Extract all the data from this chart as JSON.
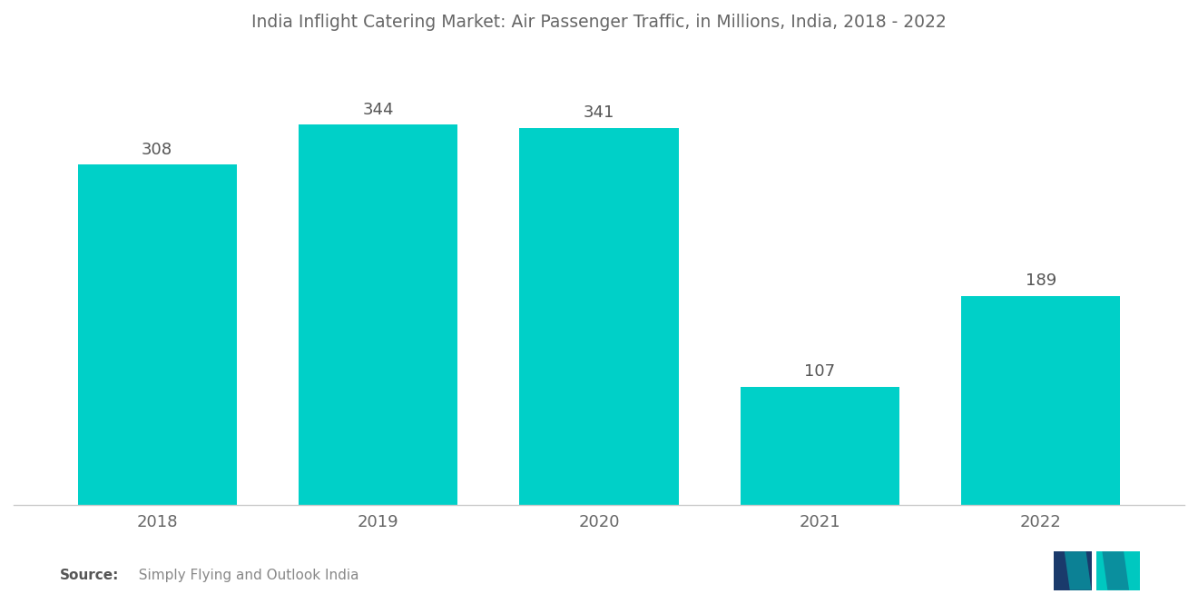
{
  "title": "India Inflight Catering Market: Air Passenger Traffic, in Millions, India, 2018 - 2022",
  "categories": [
    "2018",
    "2019",
    "2020",
    "2021",
    "2022"
  ],
  "values": [
    308,
    344,
    341,
    107,
    189
  ],
  "bar_color": "#00D0C8",
  "background_color": "#ffffff",
  "title_color": "#666666",
  "label_color": "#666666",
  "value_color": "#555555",
  "source_bold": "Source:",
  "source_text": "  Simply Flying and Outlook India",
  "title_fontsize": 13.5,
  "label_fontsize": 13,
  "value_fontsize": 13,
  "source_fontsize": 11,
  "ylim": [
    0,
    400
  ],
  "bar_width": 0.72
}
